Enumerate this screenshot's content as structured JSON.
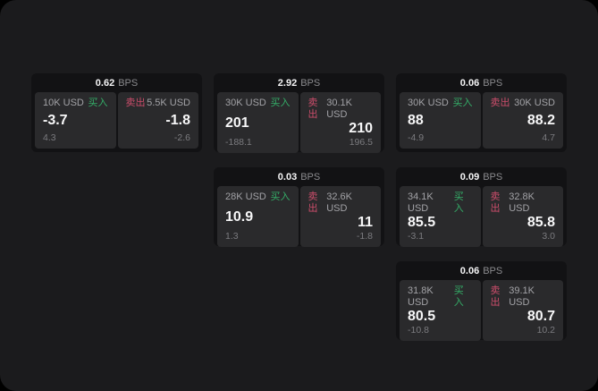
{
  "labels": {
    "bps_unit": "BPS",
    "buy": "买入",
    "sell": "卖出"
  },
  "colors": {
    "window_bg": "#1b1b1d",
    "card_bg": "#121214",
    "panel_bg": "#2a2a2c",
    "buy_green": "#34ae68",
    "sell_red": "#cc4d6b"
  },
  "cards": [
    {
      "bps": "0.62",
      "buy": {
        "amount": "10K USD",
        "price": "-3.7",
        "delta": "4.3"
      },
      "sell": {
        "amount": "5.5K USD",
        "price": "-1.8",
        "delta": "-2.6"
      }
    },
    {
      "bps": "2.92",
      "buy": {
        "amount": "30K USD",
        "price": "201",
        "delta": "-188.1"
      },
      "sell": {
        "amount": "30.1K USD",
        "price": "210",
        "delta": "196.5"
      }
    },
    {
      "bps": "0.06",
      "buy": {
        "amount": "30K USD",
        "price": "88",
        "delta": "-4.9"
      },
      "sell": {
        "amount": "30K USD",
        "price": "88.2",
        "delta": "4.7"
      }
    },
    {
      "bps": "0.03",
      "buy": {
        "amount": "28K USD",
        "price": "10.9",
        "delta": "1.3"
      },
      "sell": {
        "amount": "32.6K USD",
        "price": "11",
        "delta": "-1.8"
      }
    },
    {
      "bps": "0.09",
      "buy": {
        "amount": "34.1K USD",
        "price": "85.5",
        "delta": "-3.1"
      },
      "sell": {
        "amount": "32.8K USD",
        "price": "85.8",
        "delta": "3.0"
      }
    },
    {
      "bps": "0.06",
      "buy": {
        "amount": "31.8K USD",
        "price": "80.5",
        "delta": "-10.8"
      },
      "sell": {
        "amount": "39.1K USD",
        "price": "80.7",
        "delta": "10.2"
      }
    }
  ]
}
